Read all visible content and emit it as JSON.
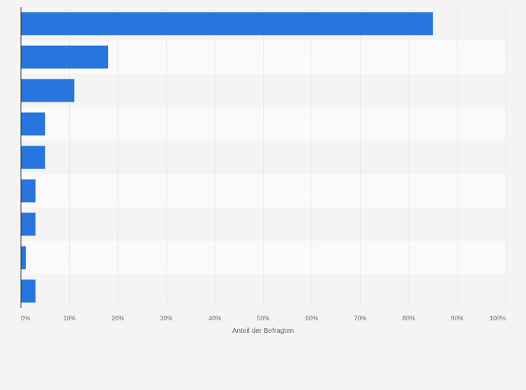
{
  "chart_data": {
    "type": "bar",
    "orientation": "horizontal",
    "title": "",
    "categories": [
      "",
      "",
      "",
      "",
      "",
      "",
      "",
      "",
      ""
    ],
    "values": [
      85,
      18,
      11,
      5,
      5,
      3,
      3,
      1,
      3
    ],
    "xlabel": "Anteil der Befragten",
    "xlim": [
      0,
      100
    ],
    "x_ticks": [
      0,
      10,
      20,
      30,
      40,
      50,
      60,
      70,
      80,
      90,
      100
    ],
    "x_tick_labels": [
      "0%",
      "10%",
      "20%",
      "30%",
      "40%",
      "50%",
      "60%",
      "70%",
      "80%",
      "90%",
      "100%"
    ],
    "grid": true,
    "colors": {
      "bar": "#2876dd",
      "page_background": "#f4f4f4",
      "plot_band_light": "#fafafa",
      "plot_band_dark": "#f4f4f4",
      "grid": "#dcdcdc",
      "axis": "#333333",
      "text": "#666666"
    }
  }
}
